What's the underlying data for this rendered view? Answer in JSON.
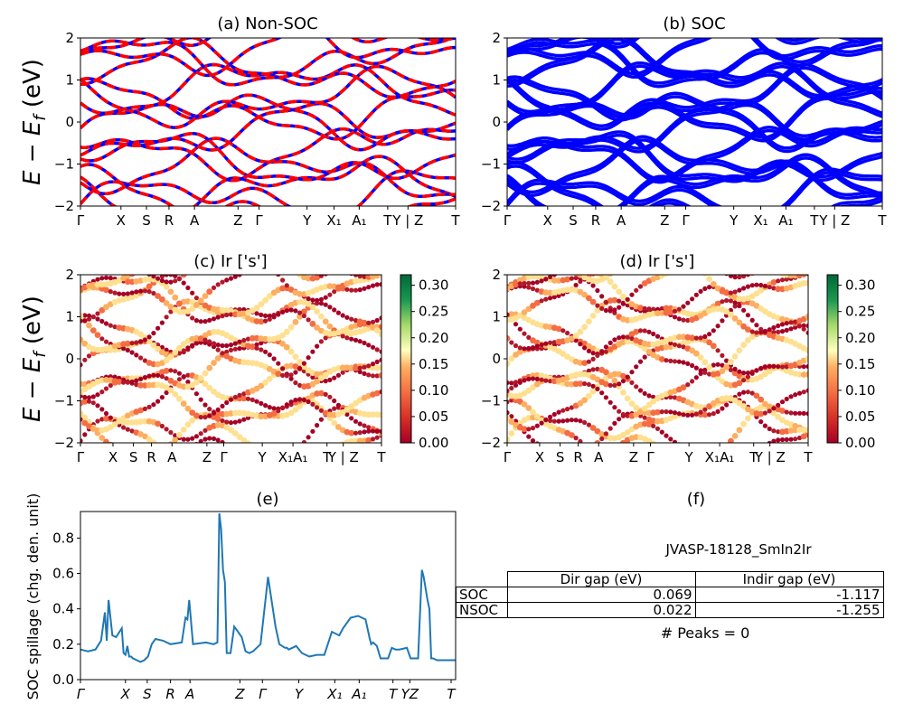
{
  "colors": {
    "nonsoc_spin_a": "#0000ff",
    "nonsoc_spin_b": "#ff0000",
    "soc_bands": "#0000ff",
    "spillage_line": "#1f77b4",
    "colormap": "RdYlGn"
  },
  "kpath_labels": [
    "Γ",
    "X",
    "S",
    "R",
    "A",
    "Z",
    "Γ",
    "Y",
    "X₁",
    "A₁",
    "T",
    "Y | Z",
    "T"
  ],
  "chart_data": [
    {
      "panel": "a",
      "type": "line",
      "title": "(a) Non-SOC",
      "ylabel": "E − E_f (eV)",
      "ylim": [
        -2,
        2
      ],
      "yticks": [
        "−2",
        "−1",
        "0",
        "1",
        "2"
      ],
      "xticks": [
        "Γ",
        "X",
        "S",
        "R",
        "A",
        "Z",
        "Γ",
        "Y",
        "X₁",
        "A₁",
        "T",
        "Y | Z",
        "T"
      ],
      "series_note": "spin-up and spin-down bands overlap (dashed)"
    },
    {
      "panel": "b",
      "type": "line",
      "title": "(b) SOC",
      "ylim": [
        -2,
        2
      ],
      "yticks": [
        "−2",
        "−1",
        "0",
        "1",
        "2"
      ],
      "xticks": [
        "Γ",
        "X",
        "S",
        "R",
        "A",
        "Z",
        "Γ",
        "Y",
        "X₁",
        "A₁",
        "T",
        "Y | Z",
        "T"
      ]
    },
    {
      "panel": "c",
      "type": "scatter",
      "title": "(c)  Ir ['s']",
      "ylabel": "E − E_f (eV)",
      "ylim": [
        -2,
        2
      ],
      "yticks": [
        "−2",
        "−1",
        "0",
        "1",
        "2"
      ],
      "xticks": [
        "Γ",
        "X",
        "S",
        "R",
        "A",
        "Z",
        "Γ",
        "Y",
        "X₁A₁",
        "T",
        "Y | Z",
        "T"
      ],
      "colorbar": {
        "min": 0.0,
        "max": 0.32,
        "ticks": [
          "0.00",
          "0.05",
          "0.10",
          "0.15",
          "0.20",
          "0.25",
          "0.30"
        ]
      }
    },
    {
      "panel": "d",
      "type": "scatter",
      "title": "(d) Ir ['s']",
      "ylim": [
        -2,
        2
      ],
      "yticks": [
        "−2",
        "−1",
        "0",
        "1",
        "2"
      ],
      "xticks": [
        "Γ",
        "X",
        "S",
        "R",
        "A",
        "Z",
        "Γ",
        "Y",
        "X₁A₁",
        "T",
        "Y | Z",
        "T"
      ],
      "colorbar": {
        "min": 0.0,
        "max": 0.32,
        "ticks": [
          "0.00",
          "0.05",
          "0.10",
          "0.15",
          "0.20",
          "0.25",
          "0.30"
        ]
      }
    },
    {
      "panel": "e",
      "type": "line",
      "title": "(e)",
      "ylabel": "SOC spillage (chg. den. unit)",
      "ylim": [
        0,
        0.95
      ],
      "yticks": [
        "0.0",
        "0.2",
        "0.4",
        "0.6",
        "0.8"
      ],
      "xticks": [
        "Γ",
        "X",
        "S",
        "R",
        "A",
        "Z",
        "Γ",
        "Y",
        "X₁",
        "A₁",
        "T",
        "YZ",
        "T"
      ],
      "x": [
        0,
        0.02,
        0.04,
        0.055,
        0.065,
        0.07,
        0.075,
        0.085,
        0.095,
        0.11,
        0.115,
        0.12,
        0.125,
        0.13,
        0.135,
        0.14,
        0.15,
        0.16,
        0.17,
        0.18,
        0.19,
        0.2,
        0.22,
        0.24,
        0.27,
        0.28,
        0.285,
        0.29,
        0.3,
        0.335,
        0.355,
        0.365,
        0.37,
        0.375,
        0.38,
        0.385,
        0.39,
        0.4,
        0.41,
        0.42,
        0.43,
        0.44,
        0.45,
        0.46,
        0.48,
        0.5,
        0.52,
        0.53,
        0.545,
        0.55,
        0.555,
        0.565,
        0.575,
        0.59,
        0.61,
        0.63,
        0.65,
        0.67,
        0.69,
        0.7,
        0.72,
        0.74,
        0.76,
        0.77,
        0.775,
        0.78,
        0.79,
        0.8,
        0.81,
        0.82,
        0.83,
        0.84,
        0.85,
        0.87,
        0.88,
        0.9,
        0.91,
        0.915,
        0.925,
        0.93,
        0.935,
        0.94,
        0.95,
        0.955,
        0.96,
        0.98,
        1.0
      ],
      "y": [
        0.17,
        0.16,
        0.17,
        0.22,
        0.38,
        0.22,
        0.45,
        0.25,
        0.24,
        0.29,
        0.15,
        0.14,
        0.19,
        0.13,
        0.13,
        0.12,
        0.11,
        0.1,
        0.11,
        0.13,
        0.2,
        0.23,
        0.22,
        0.2,
        0.21,
        0.35,
        0.34,
        0.45,
        0.2,
        0.21,
        0.2,
        0.21,
        0.94,
        0.85,
        0.62,
        0.55,
        0.15,
        0.15,
        0.3,
        0.27,
        0.24,
        0.16,
        0.15,
        0.16,
        0.2,
        0.58,
        0.3,
        0.2,
        0.18,
        0.18,
        0.17,
        0.18,
        0.19,
        0.15,
        0.13,
        0.14,
        0.14,
        0.27,
        0.25,
        0.29,
        0.35,
        0.36,
        0.34,
        0.24,
        0.2,
        0.21,
        0.19,
        0.12,
        0.12,
        0.12,
        0.18,
        0.17,
        0.17,
        0.18,
        0.12,
        0.12,
        0.62,
        0.58,
        0.45,
        0.4,
        0.12,
        0.12,
        0.11,
        0.11,
        0.11,
        0.11,
        0.11
      ]
    }
  ],
  "panel_f": {
    "label": "(f)",
    "material": "JVASP-18128_SmIn2Ir",
    "table": {
      "headers": [
        "Dir gap (eV)",
        "Indir gap (eV)"
      ],
      "rows": [
        {
          "label": "SOC",
          "dir": "0.069",
          "indir": "-1.117"
        },
        {
          "label": "NSOC",
          "dir": "0.022",
          "indir": "-1.255"
        }
      ]
    },
    "peaks": "# Peaks = 0"
  }
}
